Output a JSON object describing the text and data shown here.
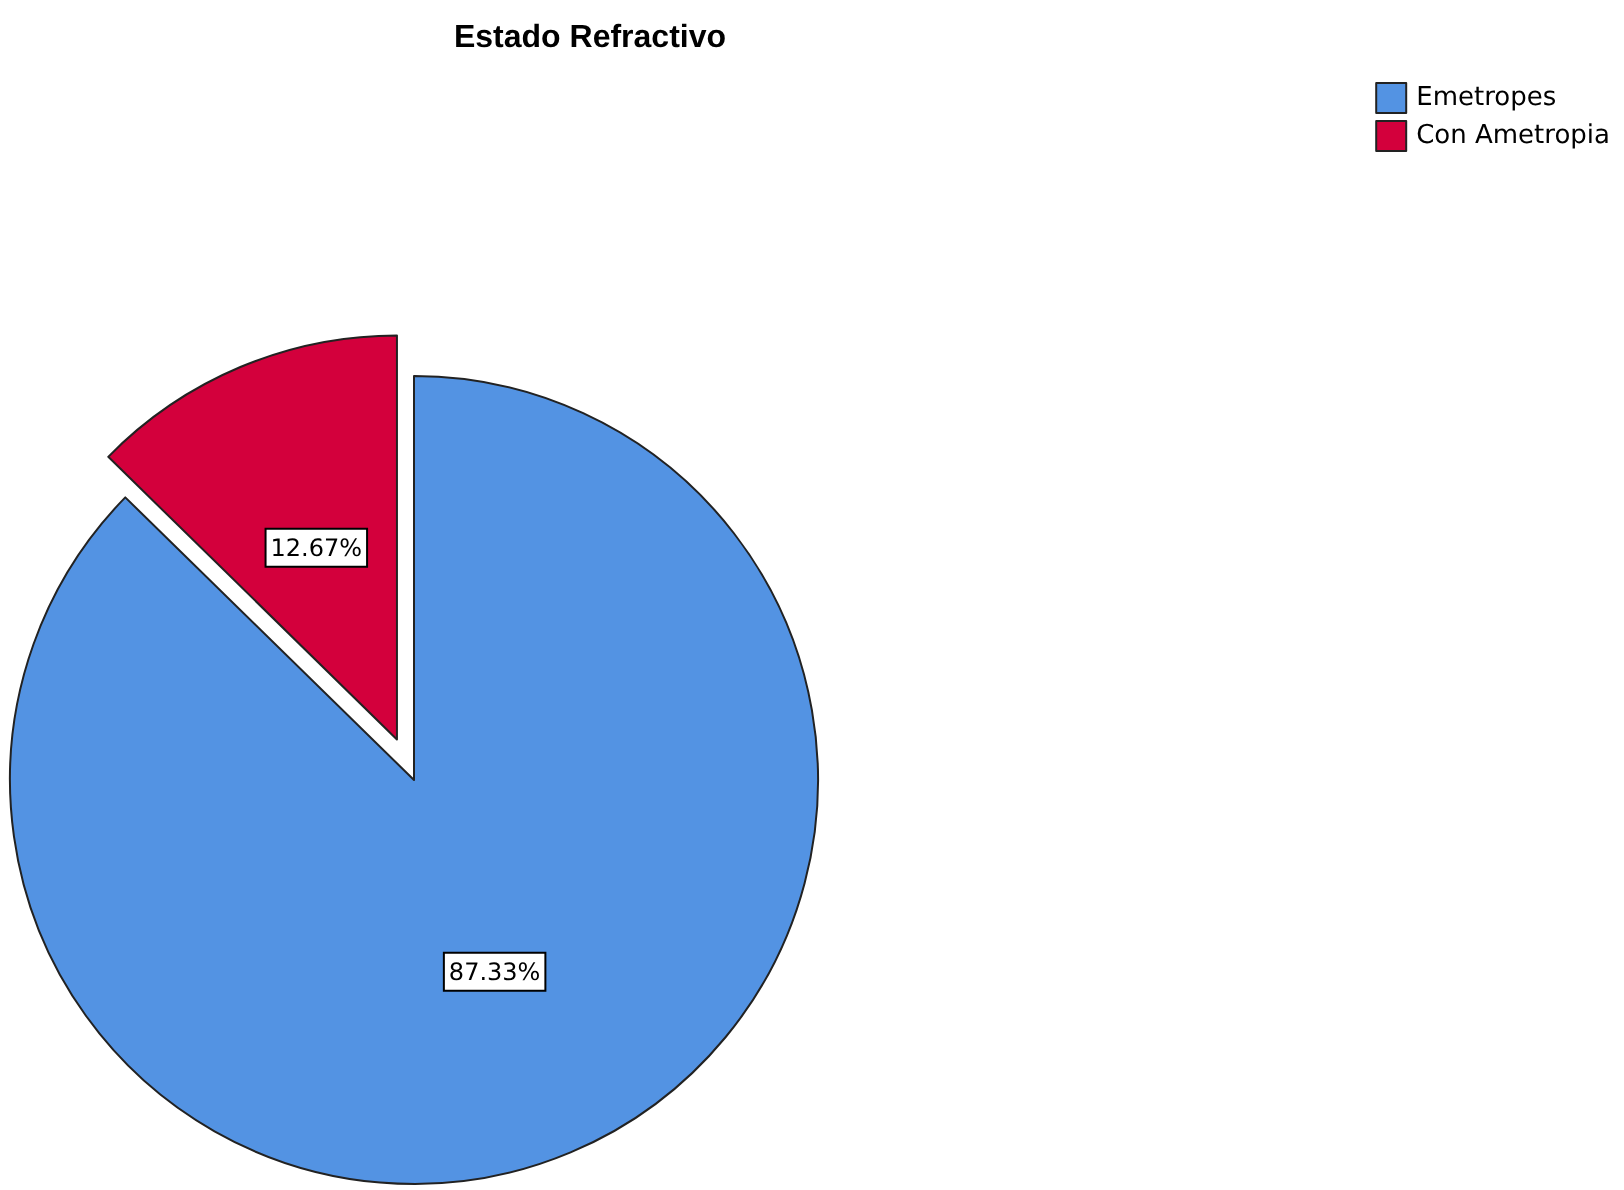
{
  "chart_data": {
    "type": "pie",
    "title": "Estado Refractivo",
    "categories": [
      "Emetropes",
      "Con Ametropia"
    ],
    "values": [
      87.33,
      12.67
    ],
    "colors": [
      "#5393e3",
      "#d3003c"
    ],
    "value_labels": [
      "87.33%",
      "12.67%"
    ],
    "legend": "top right"
  }
}
